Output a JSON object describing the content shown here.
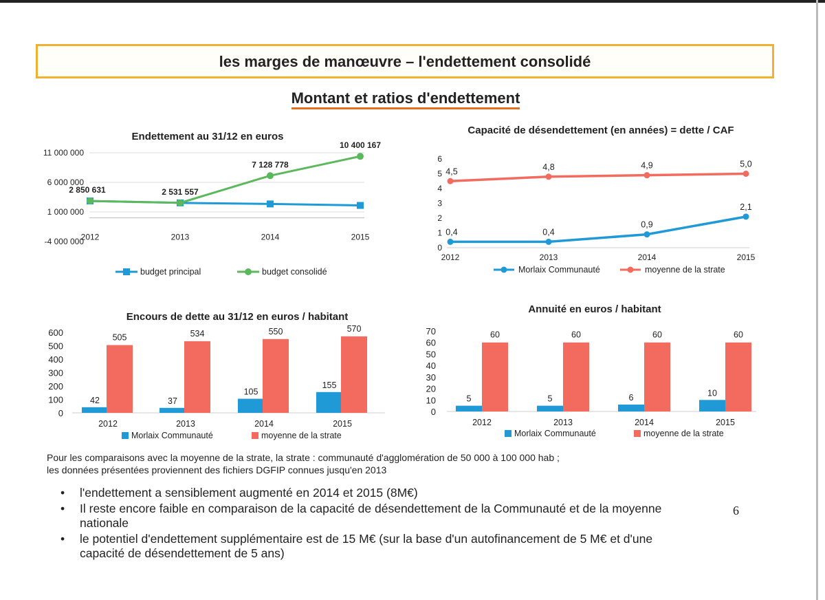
{
  "header": {
    "title": "les marges de manœuvre – l'endettement consolidé",
    "subtitle": "Montant et ratios d'endettement"
  },
  "chart_data": [
    {
      "id": "c1",
      "type": "line",
      "title": "Endettement au 31/12  en euros",
      "categories": [
        "2012",
        "2013",
        "2014",
        "2015"
      ],
      "yticks": [
        "11 000 000",
        "6 000 000",
        "1 000 000",
        "-4 000 000"
      ],
      "ylim": [
        -4000000,
        11000000
      ],
      "series": [
        {
          "name": "budget principal",
          "color": "#1f9ad6",
          "values": [
            2850631,
            2531557,
            2350000,
            2100000
          ]
        },
        {
          "name": "budget consolidé",
          "color": "#5cb85c",
          "values": [
            2850631,
            2531557,
            7128778,
            10400167
          ]
        }
      ],
      "data_labels": [
        "2 850 631",
        "2 531 557",
        "7 128 778",
        "10 400 167"
      ],
      "legend": "bottom"
    },
    {
      "id": "c2",
      "type": "line",
      "title": "Capacité de désendettement (en années) = dette / CAF",
      "categories": [
        "2012",
        "2013",
        "2014",
        "2015"
      ],
      "yticks": [
        "6",
        "5",
        "4",
        "3",
        "2",
        "1",
        "0"
      ],
      "ylim": [
        0,
        6
      ],
      "series": [
        {
          "name": "Morlaix Communauté",
          "color": "#1f9ad6",
          "values": [
            0.4,
            0.4,
            0.9,
            2.1
          ],
          "labels": [
            "0,4",
            "0,4",
            "0,9",
            "2,1"
          ]
        },
        {
          "name": "moyenne de la strate",
          "color": "#f26b5e",
          "values": [
            4.5,
            4.8,
            4.9,
            5.0
          ],
          "labels": [
            "4,5",
            "4,8",
            "4,9",
            "5,0"
          ]
        }
      ],
      "legend": "bottom"
    },
    {
      "id": "c3",
      "type": "bar",
      "title": "Encours de dette au 31/12  en euros / habitant",
      "categories": [
        "2012",
        "2013",
        "2014",
        "2015"
      ],
      "yticks": [
        "600",
        "500",
        "400",
        "300",
        "200",
        "100",
        "0"
      ],
      "ylim": [
        0,
        600
      ],
      "series": [
        {
          "name": "Morlaix Communauté",
          "color": "#1f9ad6",
          "values": [
            42,
            37,
            105,
            155
          ]
        },
        {
          "name": "moyenne de la strate",
          "color": "#f26b5e",
          "values": [
            505,
            534,
            550,
            570
          ]
        }
      ],
      "legend": "bottom"
    },
    {
      "id": "c4",
      "type": "bar",
      "title": "Annuité en euros / habitant",
      "categories": [
        "2012",
        "2013",
        "2014",
        "2015"
      ],
      "yticks": [
        "70",
        "60",
        "50",
        "40",
        "30",
        "20",
        "10",
        "0"
      ],
      "ylim": [
        0,
        70
      ],
      "series": [
        {
          "name": "Morlaix Communauté",
          "color": "#1f9ad6",
          "values": [
            5,
            5,
            6,
            10
          ]
        },
        {
          "name": "moyenne de la strate",
          "color": "#f26b5e",
          "values": [
            60,
            60,
            60,
            60
          ]
        }
      ],
      "legend": "bottom"
    }
  ],
  "note": {
    "line1": "Pour les comparaisons avec la moyenne de la strate, la strate : communauté d'agglomération de 50 000 à 100 000 hab ;",
    "line2": "les données présentées proviennent des fichiers DGFIP connues jusqu'en 2013"
  },
  "bullets": [
    "l'endettement a sensiblement augmenté en 2014 et 2015 (8M€)",
    "Il reste encore faible en comparaison de la capacité de désendettement de la Communauté et de la moyenne nationale",
    "le potentiel d'endettement supplémentaire est de 15 M€ (sur la base d'un autofinancement de 5 M€ et d'une capacité de désendettement de 5 ans)"
  ],
  "bullet_symbol": "•",
  "page_number": "6"
}
